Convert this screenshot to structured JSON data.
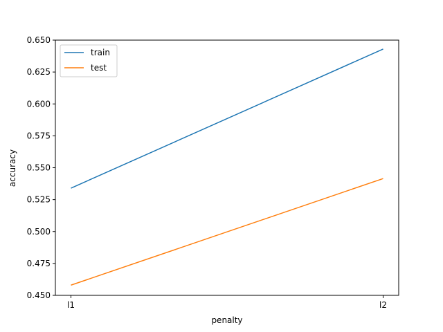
{
  "chart_data": {
    "type": "line",
    "title": "",
    "xlabel": "penalty",
    "ylabel": "accuracy",
    "categories": [
      "l1",
      "l2"
    ],
    "series": [
      {
        "name": "train",
        "values": [
          0.534,
          0.643
        ],
        "color": "#1f77b4"
      },
      {
        "name": "test",
        "values": [
          0.458,
          0.5415
        ],
        "color": "#ff7f0e"
      }
    ],
    "ylim": [
      0.45,
      0.65
    ],
    "yticks": [
      "0.450",
      "0.475",
      "0.500",
      "0.525",
      "0.550",
      "0.575",
      "0.600",
      "0.625",
      "0.650"
    ],
    "grid": false,
    "legend": "top-left"
  }
}
